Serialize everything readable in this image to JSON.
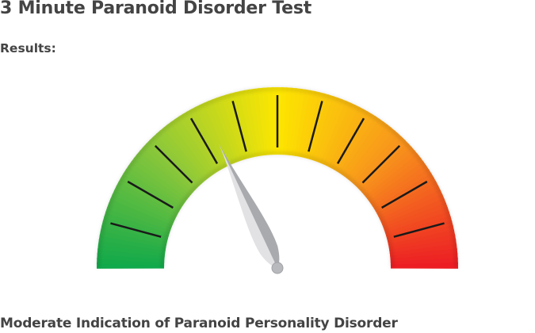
{
  "page": {
    "title": "3 Minute Paranoid Disorder Test",
    "results_label": "Results:",
    "outcome": "Moderate Indication of Paranoid Personality Disorder"
  },
  "gauge": {
    "needle_value_percent": 36,
    "tick_count": 11,
    "colors": [
      "#0ea84b",
      "#8cc83a",
      "#fde700",
      "#f8941c",
      "#ec1c24"
    ],
    "tick_color": "#1a1a1a",
    "needle_colors": {
      "light": "#e2e2e4",
      "dark": "#a9aaae"
    }
  }
}
